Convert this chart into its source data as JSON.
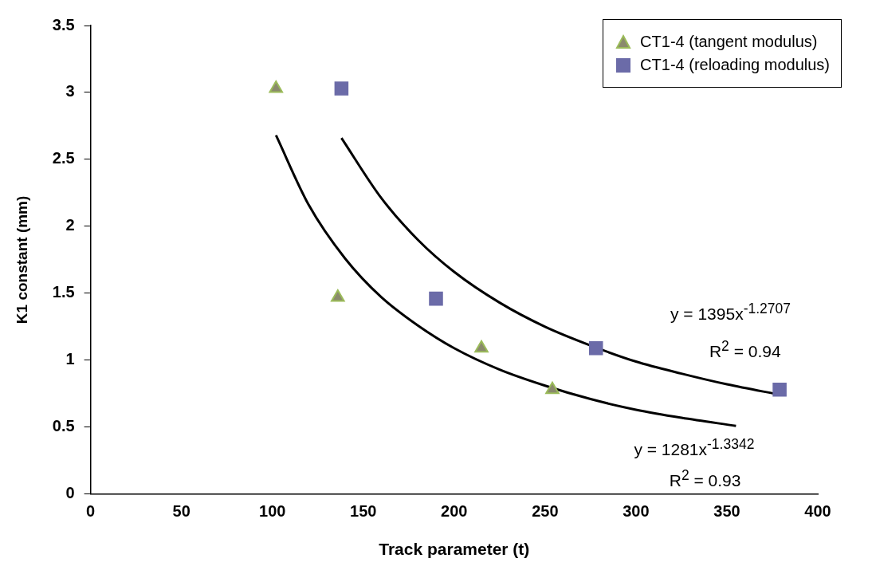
{
  "chart_data": {
    "type": "scatter",
    "xlabel": "Track parameter (t)",
    "ylabel": "K1 constant (mm)",
    "xlim": [
      0,
      400
    ],
    "xticks": [
      0,
      50,
      100,
      150,
      200,
      250,
      300,
      350,
      400
    ],
    "ylim": [
      0,
      3.5
    ],
    "yticks": [
      0,
      0.5,
      1,
      1.5,
      2,
      2.5,
      3,
      3.5
    ],
    "grid": false,
    "legend": "top right",
    "series": [
      {
        "name": "CT1-4 (tangent modulus)",
        "marker": "triangle",
        "color": "#9bbb59",
        "x": [
          102,
          136,
          215,
          254
        ],
        "values": [
          3.03,
          1.47,
          1.09,
          0.78
        ]
      },
      {
        "name": "CT1-4 (reloading modulus)",
        "marker": "square",
        "color": "#6b6ba8",
        "x": [
          138,
          190,
          278,
          379
        ],
        "values": [
          3.03,
          1.46,
          1.09,
          0.78
        ]
      },
      {
        "type": "line",
        "marker": "none",
        "color": "#000000",
        "x": [
          102,
          120,
          140,
          160,
          180,
          200,
          225,
          250,
          275,
          300,
          325,
          355
        ],
        "values": [
          2.68,
          2.16,
          1.76,
          1.47,
          1.26,
          1.09,
          0.93,
          0.81,
          0.71,
          0.63,
          0.57,
          0.51
        ]
      },
      {
        "type": "line",
        "marker": "none",
        "color": "#000000",
        "x": [
          138,
          160,
          180,
          200,
          225,
          250,
          275,
          300,
          325,
          350,
          380
        ],
        "values": [
          2.66,
          2.21,
          1.9,
          1.66,
          1.43,
          1.25,
          1.11,
          0.99,
          0.9,
          0.82,
          0.74
        ]
      }
    ],
    "annotations": [
      "y = 1395x$^{-1.2707}$",
      "R$^{2}$ = 0.94",
      "y = 1281x$^{-1.3342}$",
      "R$^{2}$ = 0.93"
    ]
  }
}
